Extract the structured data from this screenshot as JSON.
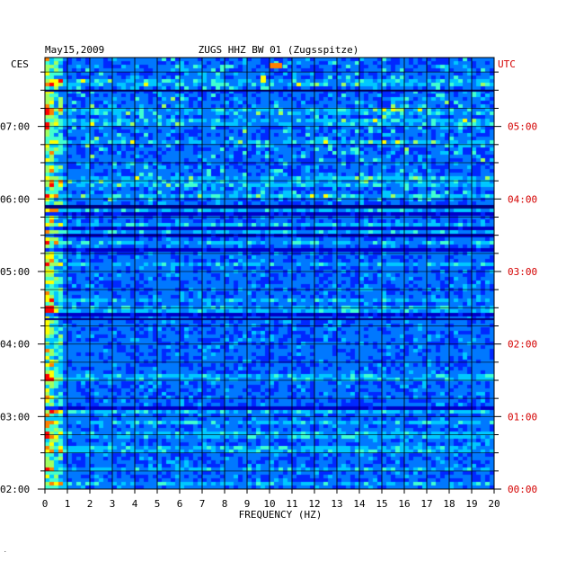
{
  "chart_data": {
    "type": "heatmap",
    "date_label": "May15,2009",
    "title": "ZUGS HHZ BW 01 (Zugsspitze)",
    "left_axis_label": "CES",
    "right_axis_label": "UTC",
    "xlabel": "FREQUENCY (HZ)",
    "x_ticks": [
      "0",
      "1",
      "2",
      "3",
      "4",
      "5",
      "6",
      "7",
      "8",
      "9",
      "10",
      "11",
      "12",
      "13",
      "14",
      "15",
      "16",
      "17",
      "18",
      "19",
      "20"
    ],
    "xlim": [
      0,
      20
    ],
    "left_time_ticks": [
      "07:00",
      "06:00",
      "05:00",
      "04:00",
      "03:00",
      "02:00"
    ],
    "right_time_ticks": [
      "05:00",
      "04:00",
      "03:00",
      "02:00",
      "01:00",
      "00:00"
    ],
    "time_range_hours_utc": [
      0,
      5.95
    ],
    "colormap": [
      "#000080",
      "#0000c8",
      "#0028ff",
      "#0078ff",
      "#00c8ff",
      "#40ffd0",
      "#a0ff60",
      "#ffff00",
      "#ff8000",
      "#ff0000"
    ],
    "colors": {
      "left_text": "#000000",
      "right_text": "#d40000",
      "grid": "#000000"
    }
  }
}
